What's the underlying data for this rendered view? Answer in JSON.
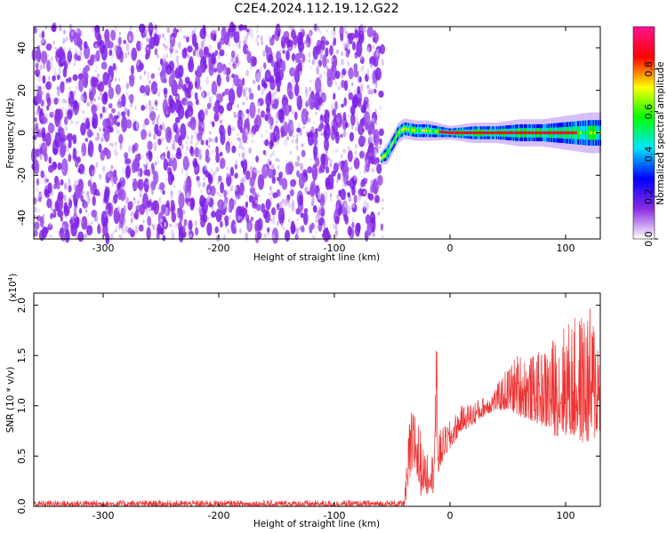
{
  "title": "C2E4.2024.112.19.12.G22",
  "chart_data": [
    {
      "type": "heatmap",
      "xlabel": "Height of straight line (km)",
      "ylabel": "Frequency (Hz)",
      "xlim": [
        -360,
        130
      ],
      "ylim": [
        -50,
        50
      ],
      "xticks": [
        -300,
        -200,
        -100,
        0,
        100
      ],
      "yticks": [
        -40,
        -20,
        0,
        20,
        40
      ],
      "noise_region_x": [
        -360,
        -58
      ],
      "signal_trace": {
        "x": [
          -60,
          -55,
          -50,
          -45,
          -40,
          -30,
          -20,
          0,
          20,
          40,
          60,
          80,
          100,
          120,
          130
        ],
        "freq_center": [
          -12,
          -10,
          -5,
          0,
          2,
          1,
          1,
          0,
          0,
          0,
          0,
          0,
          0,
          0,
          0
        ],
        "band_halfwidth_hz": [
          2,
          3,
          3,
          3,
          3,
          3,
          3,
          2,
          3,
          3,
          4,
          4,
          5,
          6,
          6
        ]
      },
      "colorbar": {
        "label": "Normalized spectral amplitude",
        "ticks": [
          "0.0",
          "0.2",
          "0.4",
          "0.6",
          "0.8"
        ],
        "range": [
          0,
          1
        ],
        "colors": [
          "#ffffff",
          "#8a2be2",
          "#0000ff",
          "#00e5ff",
          "#00ff00",
          "#ffff00",
          "#ff0000",
          "#ff1493"
        ]
      }
    },
    {
      "type": "line",
      "xlabel": "Height of straight line (km)",
      "ylabel": "SNR (10 * v/v)",
      "scale_label": "(x10",
      "scale_exp": "4",
      "scale_close": ")",
      "xlim": [
        -360,
        130
      ],
      "ylim": [
        0,
        2.12
      ],
      "xticks": [
        -300,
        -200,
        -100,
        0,
        100
      ],
      "yticks": [
        "0.0",
        "0.5",
        "1.0",
        "1.5",
        "2.0"
      ],
      "color": "#ee3333",
      "envelope": {
        "x": [
          -360,
          -40,
          -37,
          -35,
          -32,
          -30,
          -27,
          -25,
          -22,
          -20,
          -17,
          -15,
          -12,
          -10,
          -5,
          0,
          10,
          20,
          30,
          40,
          50,
          60,
          70,
          80,
          90,
          100,
          110,
          120,
          130
        ],
        "low": [
          0.0,
          0.0,
          0.05,
          0.25,
          0.2,
          0.35,
          0.15,
          0.1,
          0.2,
          0.1,
          0.2,
          0.1,
          0.4,
          0.3,
          0.5,
          0.55,
          0.75,
          0.8,
          0.9,
          0.95,
          0.95,
          0.9,
          0.85,
          0.8,
          0.7,
          0.7,
          0.65,
          0.6,
          0.7
        ],
        "high": [
          0.06,
          0.06,
          0.5,
          0.9,
          1.0,
          1.1,
          0.85,
          0.75,
          0.5,
          0.6,
          0.55,
          0.55,
          1.9,
          0.75,
          0.8,
          0.85,
          1.0,
          1.05,
          1.1,
          1.2,
          1.4,
          1.55,
          1.5,
          1.55,
          1.7,
          1.85,
          1.9,
          2.0,
          1.85
        ]
      }
    }
  ]
}
